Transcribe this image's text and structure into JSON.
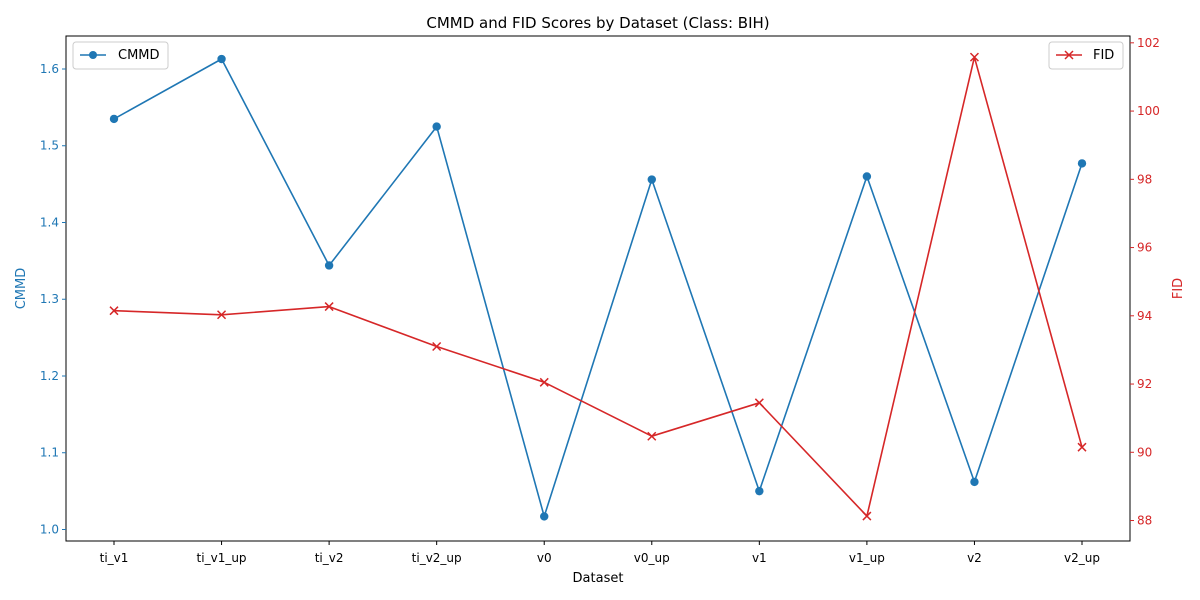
{
  "chart_data": {
    "type": "line",
    "title": "CMMD and FID Scores by Dataset (Class: BIH)",
    "xlabel": "Dataset",
    "categories": [
      "ti_v1",
      "ti_v1_up",
      "ti_v2",
      "ti_v2_up",
      "v0",
      "v0_up",
      "v1",
      "v1_up",
      "v2",
      "v2_up"
    ],
    "left_axis": {
      "label": "CMMD",
      "color": "#1f77b4",
      "ylim": [
        0.985,
        1.643
      ],
      "ticks": [
        "1.0",
        "1.1",
        "1.2",
        "1.3",
        "1.4",
        "1.5",
        "1.6"
      ],
      "tick_values": [
        1.0,
        1.1,
        1.2,
        1.3,
        1.4,
        1.5,
        1.6
      ]
    },
    "right_axis": {
      "label": "FID",
      "color": "#d62728",
      "ylim": [
        87.4,
        102.2
      ],
      "ticks": [
        "88",
        "90",
        "92",
        "94",
        "96",
        "98",
        "100",
        "102"
      ],
      "tick_values": [
        88,
        90,
        92,
        94,
        96,
        98,
        100,
        102
      ]
    },
    "series": [
      {
        "name": "CMMD",
        "axis": "left",
        "marker": "circle",
        "color": "#1f77b4",
        "values": [
          1.535,
          1.613,
          1.344,
          1.525,
          1.017,
          1.456,
          1.05,
          1.46,
          1.062,
          1.477
        ]
      },
      {
        "name": "FID",
        "axis": "right",
        "marker": "x",
        "color": "#d62728",
        "values": [
          94.15,
          94.03,
          94.27,
          93.1,
          92.05,
          90.47,
          91.45,
          88.13,
          101.58,
          90.15
        ]
      }
    ],
    "legend_left_placement": "top-left",
    "legend_right_placement": "top-right",
    "grid": false
  }
}
